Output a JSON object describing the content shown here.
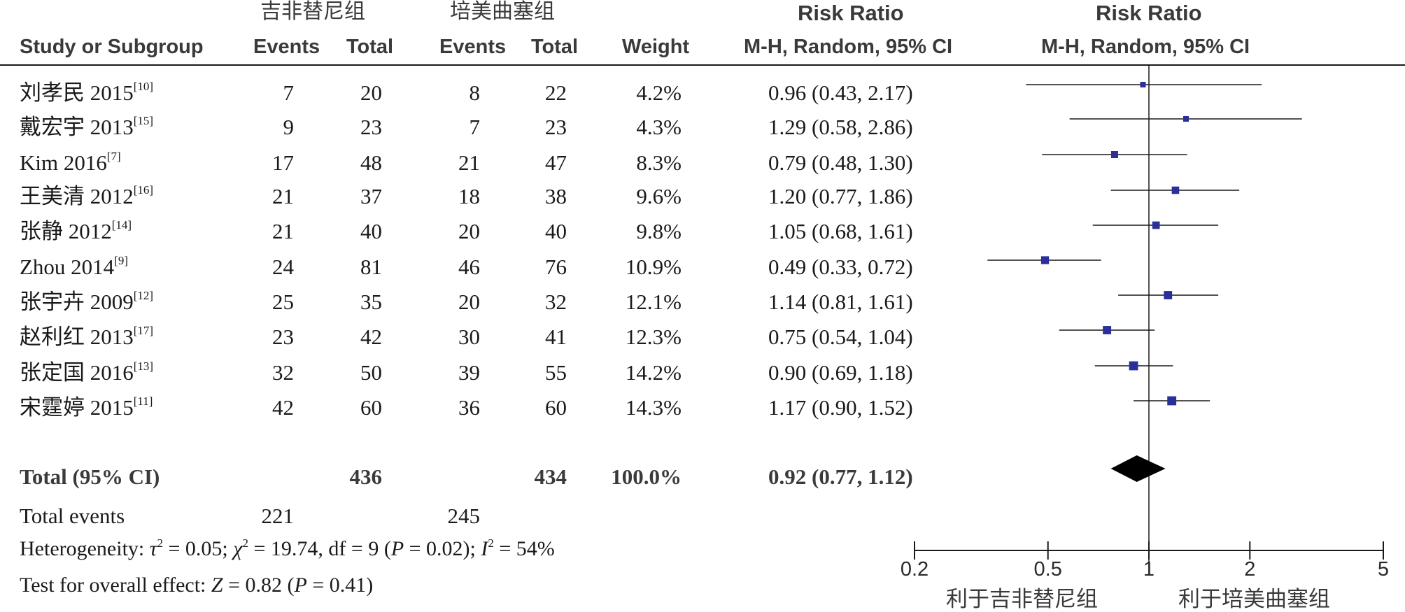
{
  "header": {
    "group1": "吉非替尼组",
    "group2": "培美曲塞组",
    "rr_title_1": "Risk Ratio",
    "rr_title_2": "Risk Ratio",
    "study_col": "Study or Subgroup",
    "events1": "Events",
    "total1": "Total",
    "events2": "Events",
    "total2": "Total",
    "weight": "Weight",
    "rr_method_1": "M-H, Random, 95% CI",
    "rr_method_2": "M-H, Random, 95% CI"
  },
  "rows": [
    {
      "study": "刘孝民 2015",
      "ref": "[10]",
      "e1": "7",
      "t1": "20",
      "e2": "8",
      "t2": "22",
      "weight": "4.2%",
      "ci": "0.96 (0.43, 2.17)"
    },
    {
      "study": "戴宏宇 2013",
      "ref": "[15]",
      "e1": "9",
      "t1": "23",
      "e2": "7",
      "t2": "23",
      "weight": "4.3%",
      "ci": "1.29 (0.58, 2.86)"
    },
    {
      "study": "Kim 2016",
      "ref": "[7]",
      "e1": "17",
      "t1": "48",
      "e2": "21",
      "t2": "47",
      "weight": "8.3%",
      "ci": "0.79 (0.48, 1.30)"
    },
    {
      "study": "王美清 2012",
      "ref": "[16]",
      "e1": "21",
      "t1": "37",
      "e2": "18",
      "t2": "38",
      "weight": "9.6%",
      "ci": "1.20 (0.77, 1.86)"
    },
    {
      "study": "张静 2012",
      "ref": "[14]",
      "e1": "21",
      "t1": "40",
      "e2": "20",
      "t2": "40",
      "weight": "9.8%",
      "ci": "1.05 (0.68, 1.61)"
    },
    {
      "study": "Zhou 2014",
      "ref": "[9]",
      "e1": "24",
      "t1": "81",
      "e2": "46",
      "t2": "76",
      "weight": "10.9%",
      "ci": "0.49 (0.33, 0.72)"
    },
    {
      "study": "张宇卉 2009",
      "ref": "[12]",
      "e1": "25",
      "t1": "35",
      "e2": "20",
      "t2": "32",
      "weight": "12.1%",
      "ci": "1.14 (0.81, 1.61)"
    },
    {
      "study": "赵利红 2013",
      "ref": "[17]",
      "e1": "23",
      "t1": "42",
      "e2": "30",
      "t2": "41",
      "weight": "12.3%",
      "ci": "0.75 (0.54, 1.04)"
    },
    {
      "study": "张定国 2016",
      "ref": "[13]",
      "e1": "32",
      "t1": "50",
      "e2": "39",
      "t2": "55",
      "weight": "14.2%",
      "ci": "0.90 (0.69, 1.18)"
    },
    {
      "study": "宋霆婷 2015",
      "ref": "[11]",
      "e1": "42",
      "t1": "60",
      "e2": "36",
      "t2": "60",
      "weight": "14.3%",
      "ci": "1.17 (0.90, 1.52)"
    }
  ],
  "total": {
    "label": "Total (95% CI)",
    "t1": "436",
    "t2": "434",
    "weight": "100.0%",
    "ci": "0.92 (0.77, 1.12)"
  },
  "total_events": {
    "label": "Total events",
    "e1": "221",
    "e2": "245"
  },
  "heterogeneity": {
    "prefix": "Heterogeneity: ",
    "tau_sym": "τ",
    "tau_val": " = 0.05; ",
    "chi_sym": "χ",
    "chi_val": " = 19.74, df = 9 (",
    "p_sym": "P",
    "p_val": " = 0.02); ",
    "i_sym": "I",
    "i_val": " = 54%",
    "sup": "2"
  },
  "overall": {
    "prefix": "Test for overall effect: ",
    "z_sym": "Z",
    "z_val": " = 0.82 (",
    "p_sym": "P",
    "p_val": " = 0.41)"
  },
  "favours": {
    "left": "利于吉非替尼组",
    "right": "利于培美曲塞组"
  },
  "colors": {
    "marker": "#2b2f9a",
    "line": "#1a1a1a",
    "diamond": "#000000"
  },
  "chart_data": {
    "type": "forest",
    "scale": "log",
    "xlim": [
      0.2,
      5
    ],
    "ticks": [
      0.2,
      0.5,
      1,
      2,
      5
    ],
    "reference_line": 1,
    "studies": [
      {
        "name": "刘孝民 2015",
        "rr": 0.96,
        "lo": 0.43,
        "hi": 2.17,
        "weight": 4.2
      },
      {
        "name": "戴宏宇 2013",
        "rr": 1.29,
        "lo": 0.58,
        "hi": 2.86,
        "weight": 4.3
      },
      {
        "name": "Kim 2016",
        "rr": 0.79,
        "lo": 0.48,
        "hi": 1.3,
        "weight": 8.3
      },
      {
        "name": "王美清 2012",
        "rr": 1.2,
        "lo": 0.77,
        "hi": 1.86,
        "weight": 9.6
      },
      {
        "name": "张静 2012",
        "rr": 1.05,
        "lo": 0.68,
        "hi": 1.61,
        "weight": 9.8
      },
      {
        "name": "Zhou 2014",
        "rr": 0.49,
        "lo": 0.33,
        "hi": 0.72,
        "weight": 10.9
      },
      {
        "name": "张宇卉 2009",
        "rr": 1.14,
        "lo": 0.81,
        "hi": 1.61,
        "weight": 12.1
      },
      {
        "name": "赵利红 2013",
        "rr": 0.75,
        "lo": 0.54,
        "hi": 1.04,
        "weight": 12.3
      },
      {
        "name": "张定国 2016",
        "rr": 0.9,
        "lo": 0.69,
        "hi": 1.18,
        "weight": 14.2
      },
      {
        "name": "宋霆婷 2015",
        "rr": 1.17,
        "lo": 0.9,
        "hi": 1.52,
        "weight": 14.3
      }
    ],
    "pooled": {
      "rr": 0.92,
      "lo": 0.77,
      "hi": 1.12
    }
  }
}
